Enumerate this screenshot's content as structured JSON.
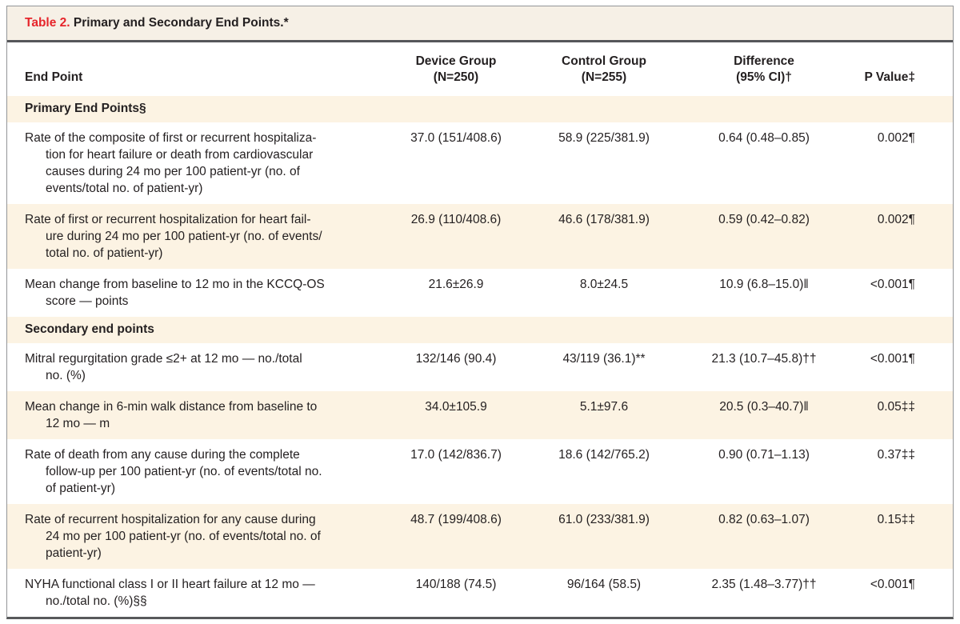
{
  "title": {
    "label": "Table 2.",
    "text": " Primary and Secondary End Points.*"
  },
  "columns": {
    "endpoint": "End Point",
    "device": "Device Group\n(N=250)",
    "control": "Control Group\n(N=255)",
    "difference": "Difference\n(95% CI)†",
    "p_value": "P Value‡"
  },
  "colors": {
    "accent_red": "#e6252b",
    "title_band_bg": "#f6f0e6",
    "stripe_bg": "#fcf3e3",
    "rule_dark": "#55565a",
    "border_gray": "#939598",
    "text": "#231f20"
  },
  "sections": [
    {
      "header": "Primary End Points§",
      "rows": [
        {
          "endpoint": "Rate of the composite of first or recurrent hospitaliza-\ntion for heart failure or death from cardiovascular\ncauses during 24 mo per 100 patient-yr (no. of\nevents/total no. of patient-yr)",
          "device": "37.0 (151/408.6)",
          "control": "58.9 (225/381.9)",
          "difference": "0.64 (0.48–0.85)",
          "p_value": "0.002¶"
        },
        {
          "endpoint": "Rate of first or recurrent hospitalization for heart fail-\nure during 24 mo per 100 patient-yr (no. of events/\ntotal no. of patient-yr)",
          "device": "26.9 (110/408.6)",
          "control": "46.6 (178/381.9)",
          "difference": "0.59 (0.42–0.82)",
          "p_value": "0.002¶"
        },
        {
          "endpoint": "Mean change from baseline to 12 mo in the KCCQ-OS\nscore — points",
          "device": "21.6±26.9",
          "control": "8.0±24.5",
          "difference": "10.9 (6.8–15.0)‖",
          "p_value": "<0.001¶"
        }
      ]
    },
    {
      "header": "Secondary end points",
      "rows": [
        {
          "endpoint": "Mitral regurgitation grade ≤2+ at 12 mo — no./total\nno. (%)",
          "device": "132/146 (90.4)",
          "control": "43/119 (36.1)**",
          "difference": "21.3 (10.7–45.8)††",
          "p_value": "<0.001¶"
        },
        {
          "endpoint": "Mean change in 6-min walk distance from baseline to\n12 mo — m",
          "device": "34.0±105.9",
          "control": "5.1±97.6",
          "difference": "20.5 (0.3–40.7)‖",
          "p_value": "0.05‡‡"
        },
        {
          "endpoint": "Rate of death from any cause during the complete\nfollow-up per 100 patient-yr (no. of events/total no.\nof patient-yr)",
          "device": "17.0 (142/836.7)",
          "control": "18.6 (142/765.2)",
          "difference": "0.90 (0.71–1.13)",
          "p_value": "0.37‡‡"
        },
        {
          "endpoint": "Rate of recurrent hospitalization for any cause during\n24 mo per 100 patient-yr (no. of events/total no. of\npatient-yr)",
          "device": "48.7 (199/408.6)",
          "control": "61.0 (233/381.9)",
          "difference": "0.82 (0.63–1.07)",
          "p_value": "0.15‡‡"
        },
        {
          "endpoint": "NYHA functional class I or II heart failure at 12 mo —\nno./total no. (%)§§",
          "device": "140/188 (74.5)",
          "control": "96/164 (58.5)",
          "difference": "2.35 (1.48–3.77)††",
          "p_value": "<0.001¶"
        }
      ]
    }
  ]
}
